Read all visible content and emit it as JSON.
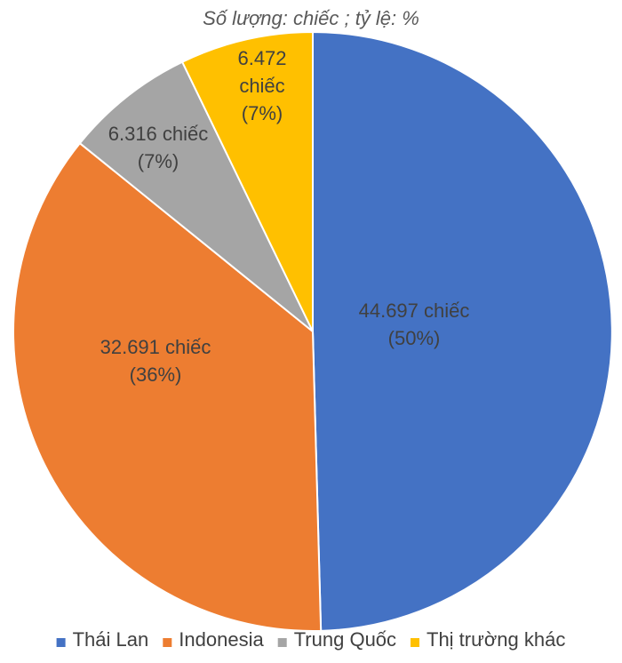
{
  "chart_data": {
    "type": "pie",
    "subtitle": "Số lượng: chiếc ; tỷ lệ: %",
    "slices": [
      {
        "name": "Thái Lan",
        "value": 44697,
        "percent": 50,
        "color": "#4472c4",
        "label_lines": [
          "44.697 chiếc",
          "(50%)"
        ]
      },
      {
        "name": "Indonesia",
        "value": 32691,
        "percent": 36,
        "color": "#ed7d31",
        "label_lines": [
          "32.691 chiếc",
          "(36%)"
        ]
      },
      {
        "name": "Trung Quốc",
        "value": 6316,
        "percent": 7,
        "color": "#a5a5a5",
        "label_lines": [
          "6.316 chiếc",
          "(7%)"
        ]
      },
      {
        "name": "Thị trường khác",
        "value": 6472,
        "percent": 7,
        "color": "#ffc000",
        "label_lines": [
          "6.472",
          "chiếc",
          "(7%)"
        ]
      }
    ],
    "start_angle": "12 o'clock",
    "direction": "clockwise",
    "legend_position": "bottom"
  }
}
